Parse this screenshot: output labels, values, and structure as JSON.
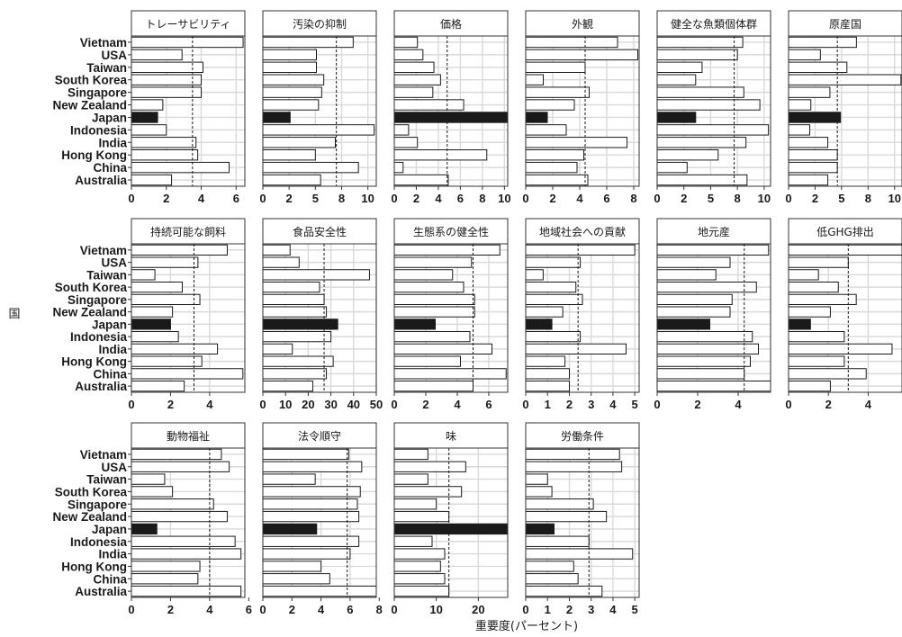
{
  "chart_data": {
    "type": "bar",
    "orientation": "horizontal",
    "facets_per_row": 6,
    "categories": [
      "Vietnam",
      "USA",
      "Taiwan",
      "South Korea",
      "Singapore",
      "New Zealand",
      "Japan",
      "Indonesia",
      "India",
      "Hong Kong",
      "China",
      "Australia"
    ],
    "highlight_category": "Japan",
    "highlight_color": "#1a1a1a",
    "bar_color": "#ffffff",
    "xlabel": "重要度(パーセント)",
    "ylabel": "国",
    "grid": true,
    "panels": [
      {
        "title": "トレーサビリティ",
        "xlim": [
          0,
          6.5
        ],
        "ticks": [
          0,
          2,
          4,
          6
        ],
        "ref": 3.5,
        "values": [
          6.4,
          2.9,
          4.1,
          4.0,
          4.0,
          1.8,
          1.5,
          2.0,
          3.7,
          3.8,
          5.6,
          2.3
        ]
      },
      {
        "title": "汚染の抑制",
        "xlim": [
          0,
          10.8
        ],
        "ticks": [
          0,
          2.5,
          5,
          7.5,
          10
        ],
        "ref": 7.0,
        "values": [
          8.6,
          5.1,
          5.1,
          5.8,
          5.6,
          5.3,
          2.6,
          10.6,
          6.9,
          5.0,
          9.1,
          5.5
        ],
        "tick_labels": [
          "0",
          "2",
          "5",
          "8",
          "10"
        ]
      },
      {
        "title": "価格",
        "xlim": [
          0,
          10.3
        ],
        "ticks": [
          0,
          2,
          4,
          6,
          8,
          10
        ],
        "ref": 4.8,
        "values": [
          2.1,
          2.6,
          3.6,
          4.2,
          3.5,
          6.3,
          10.3,
          1.3,
          2.1,
          8.4,
          0.8,
          4.9
        ]
      },
      {
        "title": "外観",
        "xlim": [
          0,
          8.4
        ],
        "ticks": [
          0,
          2,
          4,
          6,
          8
        ],
        "ref": 4.4,
        "values": [
          6.8,
          8.3,
          4.4,
          1.3,
          4.7,
          3.6,
          1.6,
          3.0,
          7.5,
          4.3,
          3.8,
          4.6
        ]
      },
      {
        "title": "健全な魚類個体群",
        "xlim": [
          0,
          10.6
        ],
        "ticks": [
          0,
          2.5,
          5,
          7.5,
          10
        ],
        "ref": 7.2,
        "values": [
          8.0,
          7.5,
          4.2,
          3.6,
          8.1,
          9.6,
          3.6,
          10.4,
          8.3,
          5.7,
          2.8,
          8.4
        ],
        "tick_labels": [
          "0",
          "2",
          "5",
          "8",
          "10"
        ]
      },
      {
        "title": "原産国",
        "xlim": [
          0,
          10.7
        ],
        "ticks": [
          0,
          2.5,
          5,
          7.5,
          10
        ],
        "ref": 4.6,
        "values": [
          6.4,
          3.0,
          5.5,
          10.6,
          3.9,
          2.1,
          4.9,
          2.0,
          3.7,
          4.6,
          4.6,
          3.7
        ],
        "tick_labels": [
          "0",
          "2",
          "5",
          "8",
          "10"
        ]
      },
      {
        "title": "持続可能な飼料",
        "xlim": [
          0,
          5.8
        ],
        "ticks": [
          0,
          2,
          4
        ],
        "ref": 3.2,
        "values": [
          4.9,
          3.4,
          1.2,
          2.6,
          3.5,
          2.1,
          2.0,
          2.4,
          4.4,
          3.6,
          5.7,
          2.7
        ]
      },
      {
        "title": "食品安全性",
        "xlim": [
          0,
          50
        ],
        "ticks": [
          0,
          10,
          20,
          30,
          40,
          50
        ],
        "ref": 27,
        "values": [
          12,
          16,
          47,
          25,
          27,
          28,
          33,
          30,
          13,
          31,
          28,
          22
        ]
      },
      {
        "title": "生態系の健全性",
        "xlim": [
          0,
          7.2
        ],
        "ticks": [
          0,
          2,
          4,
          6
        ],
        "ref": 5.0,
        "values": [
          6.7,
          4.9,
          3.7,
          4.4,
          5.1,
          5.1,
          2.6,
          4.8,
          6.2,
          4.2,
          7.1,
          5.0
        ]
      },
      {
        "title": "地域社会への貢献",
        "xlim": [
          0,
          5.2
        ],
        "ticks": [
          0,
          1,
          2,
          3,
          4,
          5
        ],
        "ref": 2.4,
        "values": [
          5.0,
          2.5,
          0.8,
          2.3,
          2.6,
          1.7,
          1.2,
          2.5,
          4.6,
          1.8,
          2.0,
          2.0
        ]
      },
      {
        "title": "地元産",
        "xlim": [
          0,
          5.6
        ],
        "ticks": [
          0,
          2,
          4
        ],
        "ref": 4.3,
        "values": [
          5.5,
          3.6,
          2.9,
          4.9,
          3.7,
          3.6,
          2.6,
          4.7,
          5.0,
          4.6,
          4.3,
          5.6
        ]
      },
      {
        "title": "低GHG排出",
        "xlim": [
          0,
          5.7
        ],
        "ticks": [
          0,
          2,
          4
        ],
        "ref": 3.0,
        "values": [
          5.7,
          3.0,
          1.5,
          2.5,
          3.4,
          2.1,
          1.1,
          2.8,
          5.2,
          2.8,
          3.9,
          2.1
        ]
      },
      {
        "title": "動物福祉",
        "xlim": [
          0,
          5.8
        ],
        "ticks": [
          0,
          2,
          4,
          6
        ],
        "ref": 4.0,
        "values": [
          4.6,
          5.0,
          1.7,
          2.1,
          4.2,
          4.9,
          1.3,
          5.3,
          5.6,
          3.5,
          3.4,
          5.6
        ]
      },
      {
        "title": "法令順守",
        "xlim": [
          0,
          7.8
        ],
        "ticks": [
          0,
          2,
          4,
          6,
          8
        ],
        "ref": 5.8,
        "values": [
          5.9,
          6.8,
          3.6,
          6.7,
          6.5,
          6.6,
          3.7,
          6.6,
          6.0,
          4.0,
          4.6,
          7.8
        ]
      },
      {
        "title": "味",
        "xlim": [
          0,
          27
        ],
        "ticks": [
          0,
          10,
          20
        ],
        "ref": 13,
        "values": [
          8,
          17,
          8,
          16,
          10,
          13,
          27,
          9,
          12,
          11,
          12,
          13
        ]
      },
      {
        "title": "労働条件",
        "xlim": [
          0,
          5.2
        ],
        "ticks": [
          0,
          1,
          2,
          3,
          4,
          5
        ],
        "ref": 2.9,
        "values": [
          4.3,
          4.4,
          1.0,
          1.2,
          3.1,
          3.7,
          1.3,
          2.9,
          4.9,
          2.2,
          2.4,
          3.5
        ]
      }
    ]
  }
}
